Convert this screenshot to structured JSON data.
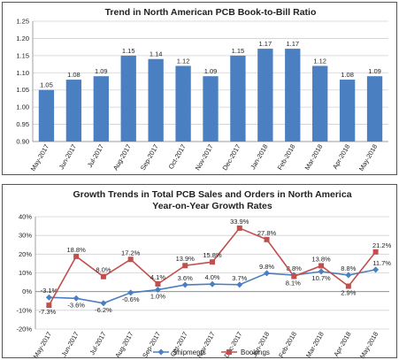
{
  "chart_data": [
    {
      "type": "bar",
      "title": "Trend in North American PCB Book-to-Bill Ratio",
      "categories": [
        "May-2017",
        "Jun-2017",
        "Jul-2017",
        "Aug-2017",
        "Sep-2017",
        "Oct-2017",
        "Nov-2017",
        "Dec-2017",
        "Jan-2018",
        "Feb-2018",
        "Mar-2018",
        "Apr-2018",
        "May-2018"
      ],
      "values": [
        1.05,
        1.08,
        1.09,
        1.15,
        1.14,
        1.12,
        1.09,
        1.15,
        1.17,
        1.17,
        1.12,
        1.08,
        1.09
      ],
      "value_labels": [
        "1.05",
        "1.08",
        "1.09",
        "1.15",
        "1.14",
        "1.12",
        "1.09",
        "1.15",
        "1.17",
        "1.17",
        "1.12",
        "1.08",
        "1.09"
      ],
      "ylim": [
        0.9,
        1.25
      ],
      "yticks": [
        "0.90",
        "0.95",
        "1.00",
        "1.05",
        "1.10",
        "1.15",
        "1.20",
        "1.25"
      ],
      "grid": true,
      "bar_color": "#4a7fc1"
    },
    {
      "type": "line",
      "title": "Growth Trends in Total PCB Sales and Orders in North America",
      "subtitle": "Year-on-Year Growth Rates",
      "categories": [
        "May-2017",
        "Jun-2017",
        "Jul-2017",
        "Aug-2017",
        "Sep-2017",
        "Oct-2017",
        "Nov-2017",
        "Dec-2017",
        "Jan-2018",
        "Feb-2018",
        "Mar-2018",
        "Apr-2018",
        "May-2018"
      ],
      "series": [
        {
          "name": "Shipments",
          "values": [
            -3.1,
            -3.6,
            -6.2,
            -0.6,
            1.0,
            3.6,
            4.0,
            3.7,
            9.8,
            8.8,
            10.7,
            8.8,
            11.7
          ],
          "labels": [
            "-3.1%",
            "-3.6%",
            "-6.2%",
            "-0.6%",
            "1.0%",
            "3.6%",
            "4.0%",
            "3.7%",
            "9.8%",
            "8.8%",
            "10.7%",
            "8.8%",
            "11.7%"
          ],
          "color": "#4a7fc1",
          "marker": "diamond"
        },
        {
          "name": "Bookings",
          "values": [
            -7.3,
            18.8,
            8.0,
            17.2,
            4.1,
            13.9,
            15.8,
            33.9,
            27.8,
            8.1,
            13.8,
            2.9,
            21.2
          ],
          "labels": [
            "-7.3%",
            "18.8%",
            "8.0%",
            "17.2%",
            "4.1%",
            "13.9%",
            "15.8%",
            "33.9%",
            "27.8%",
            "8.1%",
            "13.8%",
            "2.9%",
            "21.2%"
          ],
          "color": "#c0504d",
          "marker": "square"
        }
      ],
      "ylim": [
        -20,
        40
      ],
      "yticks": [
        "-20%",
        "-10%",
        "0%",
        "10%",
        "20%",
        "30%",
        "40%"
      ],
      "grid": true,
      "legend": "bottom"
    }
  ]
}
